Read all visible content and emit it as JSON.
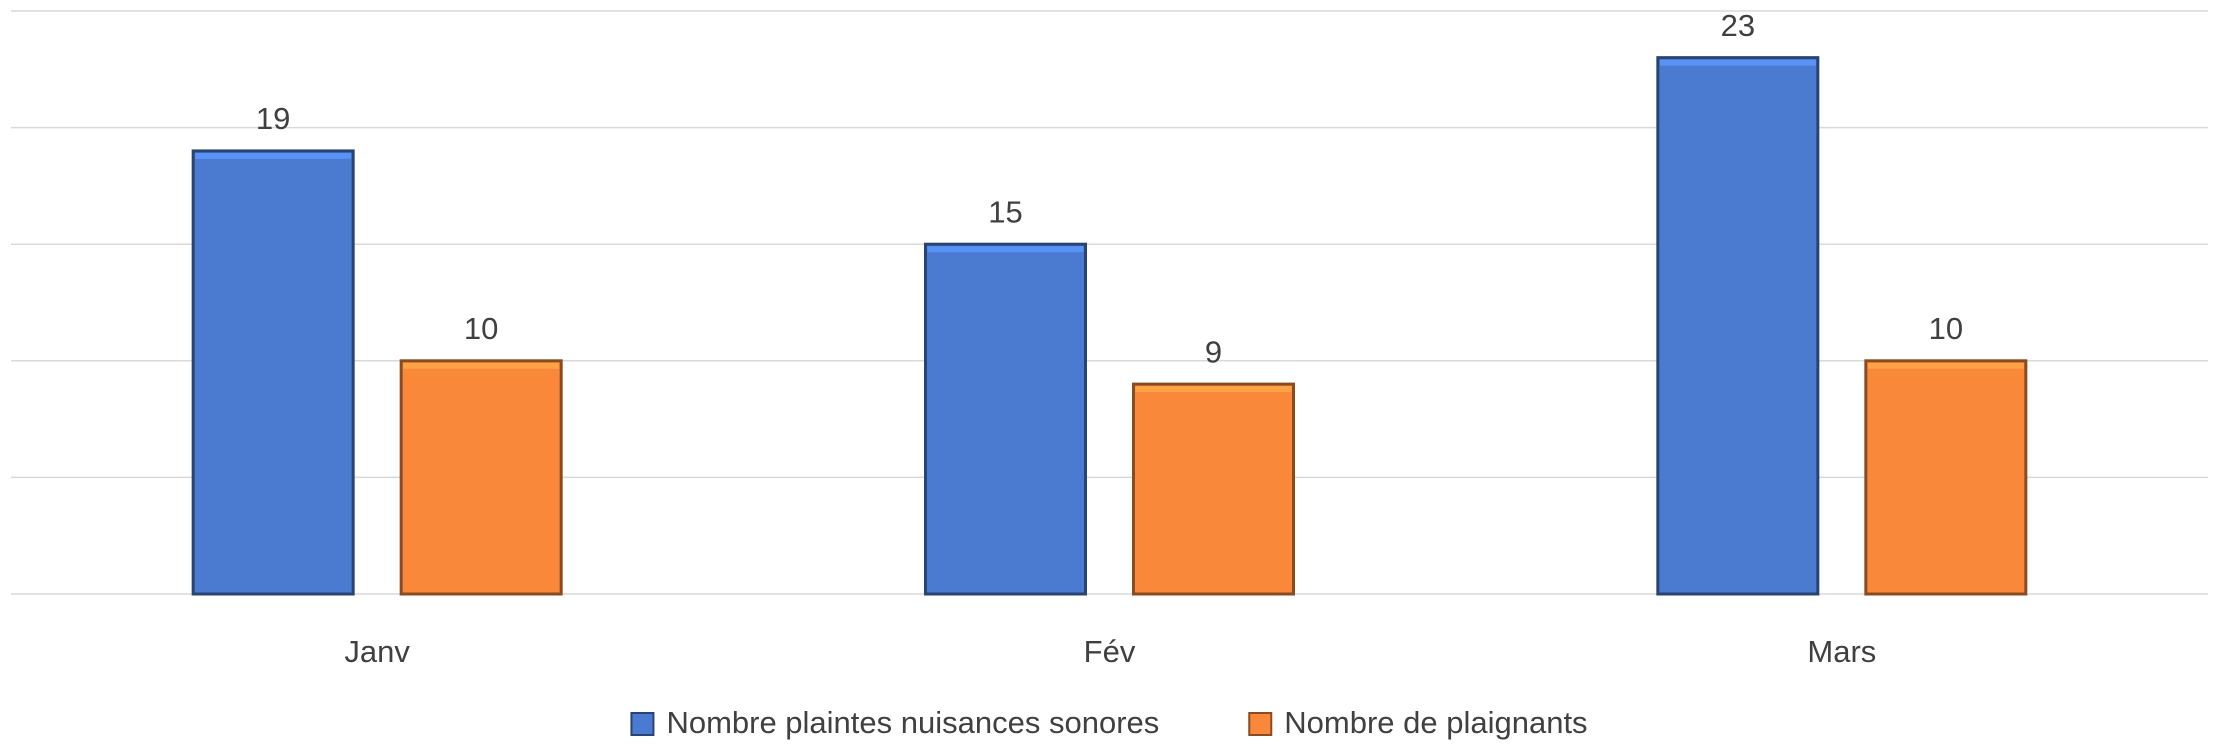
{
  "chart_data": {
    "type": "bar",
    "categories": [
      "Janv",
      "Fév",
      "Mars"
    ],
    "series": [
      {
        "name": "Nombre plaintes nuisances sonores",
        "color": "#4a7bd0",
        "values": [
          19,
          15,
          23
        ]
      },
      {
        "name": "Nombre de plaignants",
        "color": "#fa883a",
        "values": [
          10,
          9,
          10
        ]
      }
    ],
    "ylim": [
      0,
      25
    ],
    "yticks": [
      0,
      5,
      10,
      15,
      20,
      25
    ],
    "grid": true,
    "legend": "bottom"
  }
}
